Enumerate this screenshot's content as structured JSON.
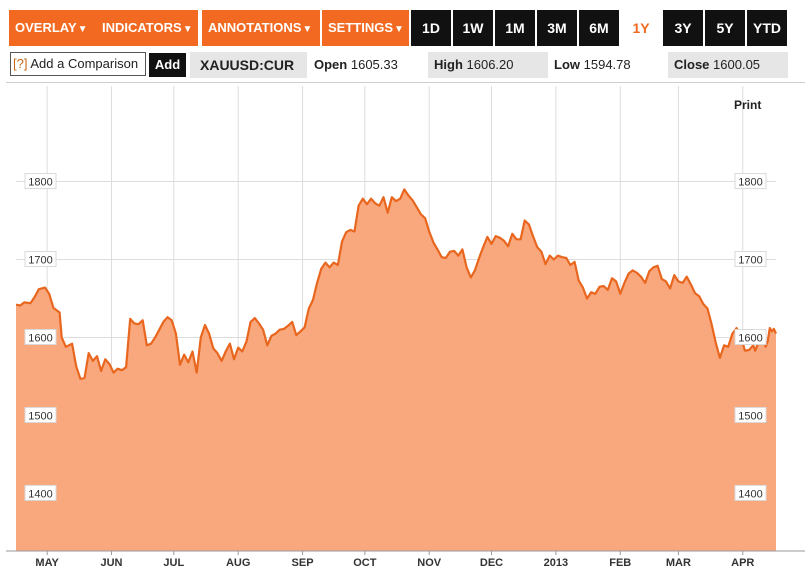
{
  "toolbar": {
    "menus": [
      {
        "label": "OVERLAY",
        "name": "overlay-menu-button"
      },
      {
        "label": "INDICATORS",
        "name": "indicators-menu-button"
      },
      {
        "label": "ANNOTATIONS",
        "name": "annotations-menu-button"
      },
      {
        "label": "SETTINGS",
        "name": "settings-menu-button"
      }
    ],
    "caret": "▼",
    "ranges": [
      "1D",
      "1W",
      "1M",
      "3M",
      "6M",
      "1Y",
      "3Y",
      "5Y",
      "YTD"
    ],
    "active_range": "1Y",
    "colors": {
      "menu_bg": "#f26a21",
      "range_bg": "#111111",
      "active_text": "#f26a21"
    }
  },
  "comparison": {
    "help": "[?]",
    "placeholder": "Add a Comparison",
    "add_label": "Add"
  },
  "quote": {
    "ticker": "XAUUSD:CUR",
    "open_label": "Open",
    "open_value": "1605.33",
    "high_label": "High",
    "high_value": "1606.20",
    "low_label": "Low",
    "low_value": "1594.78",
    "close_label": "Close",
    "close_value": "1600.05"
  },
  "print_label": "Print",
  "chart_data": {
    "type": "area",
    "ylim": [
      1330,
      1920
    ],
    "yticks": [
      "1800",
      "1700",
      "1600",
      "1500",
      "1400"
    ],
    "xtick_labels": [
      "MAY",
      "JUN",
      "JUL",
      "AUG",
      "SEP",
      "OCT",
      "NOV",
      "DEC",
      "2013",
      "FEB",
      "MAR",
      "APR"
    ],
    "x_start": "2012-04-16",
    "x_end": "2013-04-17",
    "xtick_dates": [
      "2012-05-01",
      "2012-06-01",
      "2012-07-01",
      "2012-08-01",
      "2012-09-01",
      "2012-10-01",
      "2012-11-01",
      "2012-12-01",
      "2013-01-01",
      "2013-02-01",
      "2013-03-01",
      "2013-04-01"
    ],
    "grid": true,
    "colors": {
      "fill": "#f9a87e",
      "line": "#e8661e",
      "grid": "#dddddd"
    },
    "points": [
      [
        "2012-04-16",
        1642
      ],
      [
        "2012-04-18",
        1641
      ],
      [
        "2012-04-20",
        1645
      ],
      [
        "2012-04-23",
        1644
      ],
      [
        "2012-04-25",
        1652
      ],
      [
        "2012-04-27",
        1662
      ],
      [
        "2012-04-30",
        1664
      ],
      [
        "2012-05-02",
        1656
      ],
      [
        "2012-05-04",
        1638
      ],
      [
        "2012-05-07",
        1632
      ],
      [
        "2012-05-08",
        1600
      ],
      [
        "2012-05-10",
        1588
      ],
      [
        "2012-05-13",
        1592
      ],
      [
        "2012-05-15",
        1563
      ],
      [
        "2012-05-17",
        1547
      ],
      [
        "2012-05-19",
        1548
      ],
      [
        "2012-05-21",
        1580
      ],
      [
        "2012-05-23",
        1570
      ],
      [
        "2012-05-25",
        1576
      ],
      [
        "2012-05-27",
        1557
      ],
      [
        "2012-05-29",
        1572
      ],
      [
        "2012-05-31",
        1566
      ],
      [
        "2012-06-02",
        1555
      ],
      [
        "2012-06-04",
        1560
      ],
      [
        "2012-06-06",
        1558
      ],
      [
        "2012-06-08",
        1562
      ],
      [
        "2012-06-10",
        1624
      ],
      [
        "2012-06-12",
        1618
      ],
      [
        "2012-06-14",
        1617
      ],
      [
        "2012-06-16",
        1622
      ],
      [
        "2012-06-18",
        1590
      ],
      [
        "2012-06-20",
        1592
      ],
      [
        "2012-06-22",
        1600
      ],
      [
        "2012-06-24",
        1610
      ],
      [
        "2012-06-26",
        1620
      ],
      [
        "2012-06-28",
        1626
      ],
      [
        "2012-06-30",
        1622
      ],
      [
        "2012-07-02",
        1605
      ],
      [
        "2012-07-04",
        1565
      ],
      [
        "2012-07-06",
        1578
      ],
      [
        "2012-07-08",
        1568
      ],
      [
        "2012-07-10",
        1582
      ],
      [
        "2012-07-12",
        1555
      ],
      [
        "2012-07-14",
        1600
      ],
      [
        "2012-07-16",
        1616
      ],
      [
        "2012-07-18",
        1605
      ],
      [
        "2012-07-20",
        1586
      ],
      [
        "2012-07-22",
        1580
      ],
      [
        "2012-07-24",
        1570
      ],
      [
        "2012-07-26",
        1582
      ],
      [
        "2012-07-28",
        1592
      ],
      [
        "2012-07-30",
        1572
      ],
      [
        "2012-08-01",
        1587
      ],
      [
        "2012-08-03",
        1582
      ],
      [
        "2012-08-05",
        1595
      ],
      [
        "2012-08-07",
        1620
      ],
      [
        "2012-08-09",
        1625
      ],
      [
        "2012-08-11",
        1618
      ],
      [
        "2012-08-13",
        1610
      ],
      [
        "2012-08-15",
        1590
      ],
      [
        "2012-08-17",
        1602
      ],
      [
        "2012-08-19",
        1605
      ],
      [
        "2012-08-21",
        1610
      ],
      [
        "2012-08-23",
        1611
      ],
      [
        "2012-08-25",
        1615
      ],
      [
        "2012-08-27",
        1620
      ],
      [
        "2012-08-29",
        1603
      ],
      [
        "2012-08-31",
        1608
      ],
      [
        "2012-09-02",
        1613
      ],
      [
        "2012-09-04",
        1637
      ],
      [
        "2012-09-06",
        1648
      ],
      [
        "2012-09-08",
        1670
      ],
      [
        "2012-09-10",
        1688
      ],
      [
        "2012-09-12",
        1696
      ],
      [
        "2012-09-14",
        1690
      ],
      [
        "2012-09-16",
        1696
      ],
      [
        "2012-09-18",
        1693
      ],
      [
        "2012-09-20",
        1723
      ],
      [
        "2012-09-22",
        1735
      ],
      [
        "2012-09-24",
        1738
      ],
      [
        "2012-09-26",
        1736
      ],
      [
        "2012-09-28",
        1769
      ],
      [
        "2012-09-30",
        1778
      ],
      [
        "2012-10-02",
        1771
      ],
      [
        "2012-10-04",
        1778
      ],
      [
        "2012-10-06",
        1772
      ],
      [
        "2012-10-08",
        1769
      ],
      [
        "2012-10-10",
        1780
      ],
      [
        "2012-10-12",
        1760
      ],
      [
        "2012-10-14",
        1780
      ],
      [
        "2012-10-16",
        1775
      ],
      [
        "2012-10-18",
        1778
      ],
      [
        "2012-10-20",
        1790
      ],
      [
        "2012-10-22",
        1782
      ],
      [
        "2012-10-24",
        1776
      ],
      [
        "2012-10-26",
        1767
      ],
      [
        "2012-10-28",
        1758
      ],
      [
        "2012-10-30",
        1753
      ],
      [
        "2012-11-01",
        1736
      ],
      [
        "2012-11-03",
        1722
      ],
      [
        "2012-11-05",
        1713
      ],
      [
        "2012-11-07",
        1703
      ],
      [
        "2012-11-09",
        1702
      ],
      [
        "2012-11-11",
        1710
      ],
      [
        "2012-11-13",
        1711
      ],
      [
        "2012-11-15",
        1705
      ],
      [
        "2012-11-17",
        1713
      ],
      [
        "2012-11-19",
        1690
      ],
      [
        "2012-11-21",
        1677
      ],
      [
        "2012-11-23",
        1686
      ],
      [
        "2012-11-25",
        1702
      ],
      [
        "2012-11-27",
        1716
      ],
      [
        "2012-11-29",
        1729
      ],
      [
        "2012-12-01",
        1720
      ],
      [
        "2012-12-03",
        1730
      ],
      [
        "2012-12-05",
        1728
      ],
      [
        "2012-12-07",
        1724
      ],
      [
        "2012-12-09",
        1717
      ],
      [
        "2012-12-11",
        1733
      ],
      [
        "2012-12-13",
        1726
      ],
      [
        "2012-12-15",
        1726
      ],
      [
        "2012-12-17",
        1750
      ],
      [
        "2012-12-19",
        1745
      ],
      [
        "2012-12-21",
        1730
      ],
      [
        "2012-12-23",
        1716
      ],
      [
        "2012-12-25",
        1710
      ],
      [
        "2012-12-27",
        1694
      ],
      [
        "2012-12-29",
        1705
      ],
      [
        "2012-12-31",
        1700
      ],
      [
        "2013-01-02",
        1705
      ],
      [
        "2013-01-04",
        1703
      ],
      [
        "2013-01-06",
        1702
      ],
      [
        "2013-01-08",
        1693
      ],
      [
        "2013-01-10",
        1697
      ],
      [
        "2013-01-12",
        1673
      ],
      [
        "2013-01-14",
        1664
      ],
      [
        "2013-01-16",
        1650
      ],
      [
        "2013-01-18",
        1658
      ],
      [
        "2013-01-20",
        1656
      ],
      [
        "2013-01-22",
        1665
      ],
      [
        "2013-01-24",
        1666
      ],
      [
        "2013-01-26",
        1661
      ],
      [
        "2013-01-28",
        1676
      ],
      [
        "2013-01-30",
        1672
      ],
      [
        "2013-02-01",
        1656
      ],
      [
        "2013-02-03",
        1670
      ],
      [
        "2013-02-05",
        1682
      ],
      [
        "2013-02-07",
        1686
      ],
      [
        "2013-02-09",
        1683
      ],
      [
        "2013-02-11",
        1678
      ],
      [
        "2013-02-13",
        1670
      ],
      [
        "2013-02-15",
        1685
      ],
      [
        "2013-02-17",
        1690
      ],
      [
        "2013-02-19",
        1692
      ],
      [
        "2013-02-21",
        1675
      ],
      [
        "2013-02-23",
        1672
      ],
      [
        "2013-02-25",
        1663
      ],
      [
        "2013-02-27",
        1680
      ],
      [
        "2013-03-01",
        1672
      ],
      [
        "2013-03-03",
        1670
      ],
      [
        "2013-03-05",
        1678
      ],
      [
        "2013-03-07",
        1668
      ],
      [
        "2013-03-09",
        1657
      ],
      [
        "2013-03-11",
        1653
      ],
      [
        "2013-03-13",
        1643
      ],
      [
        "2013-03-15",
        1637
      ],
      [
        "2013-03-17",
        1617
      ],
      [
        "2013-03-19",
        1593
      ],
      [
        "2013-03-21",
        1574
      ],
      [
        "2013-03-23",
        1590
      ],
      [
        "2013-03-25",
        1588
      ],
      [
        "2013-03-27",
        1605
      ],
      [
        "2013-03-29",
        1612
      ],
      [
        "2013-03-31",
        1603
      ],
      [
        "2013-04-02",
        1583
      ],
      [
        "2013-04-04",
        1584
      ],
      [
        "2013-04-06",
        1590
      ],
      [
        "2013-04-07",
        1583
      ],
      [
        "2013-04-08",
        1590
      ],
      [
        "2013-04-09",
        1598
      ],
      [
        "2013-04-10",
        1605
      ],
      [
        "2013-04-11",
        1598
      ],
      [
        "2013-04-12",
        1588
      ],
      [
        "2013-04-13",
        1595
      ],
      [
        "2013-04-14",
        1612
      ],
      [
        "2013-04-15",
        1608
      ],
      [
        "2013-04-16",
        1611
      ],
      [
        "2013-04-17",
        1605
      ]
    ]
  }
}
